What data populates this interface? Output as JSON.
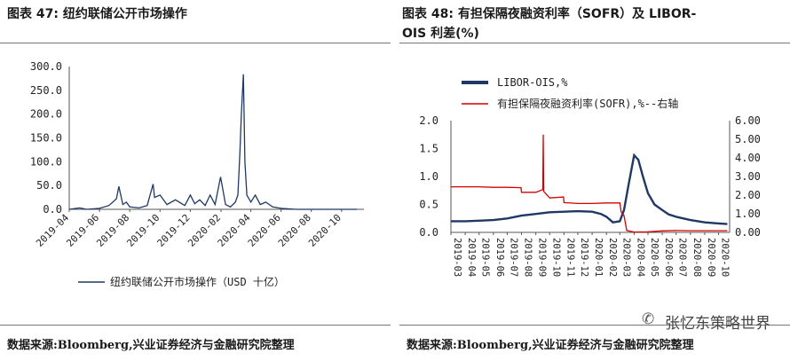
{
  "left": {
    "header": "图表 47:  纽约联储公开市场操作",
    "source": "数据来源:Bloomberg,兴业证券经济与金融研究院整理",
    "chart_data": {
      "type": "line",
      "series": [
        {
          "name": "纽约联储公开市场操作（USD 十亿）",
          "color": "#1f3864",
          "x": [
            "2019-04-01",
            "2019-04-22",
            "2019-05-06",
            "2019-06-01",
            "2019-06-20",
            "2019-07-05",
            "2019-07-10",
            "2019-07-18",
            "2019-07-25",
            "2019-08-01",
            "2019-08-20",
            "2019-09-05",
            "2019-09-17",
            "2019-09-20",
            "2019-10-01",
            "2019-10-15",
            "2019-11-01",
            "2019-11-20",
            "2019-12-01",
            "2019-12-10",
            "2019-12-20",
            "2019-12-31",
            "2020-01-10",
            "2020-01-20",
            "2020-01-31",
            "2020-02-10",
            "2020-02-20",
            "2020-03-01",
            "2020-03-06",
            "2020-03-10",
            "2020-03-13",
            "2020-03-17",
            "2020-03-20",
            "2020-03-24",
            "2020-04-01",
            "2020-04-10",
            "2020-04-20",
            "2020-05-01",
            "2020-05-15",
            "2020-06-01",
            "2020-07-01",
            "2020-08-01",
            "2020-09-01",
            "2020-10-01",
            "2020-11-01"
          ],
          "values": [
            0,
            3,
            0,
            2,
            8,
            22,
            48,
            10,
            15,
            5,
            3,
            8,
            53,
            25,
            30,
            10,
            20,
            8,
            30,
            12,
            20,
            8,
            30,
            10,
            68,
            10,
            5,
            15,
            30,
            120,
            200,
            284,
            100,
            30,
            15,
            30,
            10,
            15,
            5,
            2,
            0,
            0,
            0,
            0,
            0
          ]
        }
      ],
      "x_ticks": [
        "2019-04",
        "2019-06",
        "2019-08",
        "2019-10",
        "2019-12",
        "2020-02",
        "2020-04",
        "2020-06",
        "2020-08",
        "2020-10"
      ],
      "y_ticks": [
        "300.0",
        "250.0",
        "200.0",
        "150.0",
        "100.0",
        "50.0",
        "0.0"
      ],
      "ylim": [
        0,
        300
      ],
      "legend": "纽约联储公开市场操作（USD 十亿）",
      "legend_position": "bottom"
    }
  },
  "right": {
    "header_line1": "图表 48:  有担保隔夜融资利率（SOFR）及 LIBOR-",
    "header_line2": "OIS 利差(%)",
    "source": "数据来源:Bloomberg,兴业证券经济与金融研究院整理",
    "chart_data": {
      "type": "line",
      "series": [
        {
          "name": "LIBOR-OIS,%",
          "axis": "left",
          "color": "#1f3864",
          "x": [
            "2019-03-01",
            "2019-04-01",
            "2019-05-01",
            "2019-06-01",
            "2019-07-01",
            "2019-08-01",
            "2019-09-01",
            "2019-10-01",
            "2019-11-01",
            "2019-12-01",
            "2020-01-01",
            "2020-01-20",
            "2020-02-01",
            "2020-02-15",
            "2020-03-01",
            "2020-03-10",
            "2020-03-20",
            "2020-04-01",
            "2020-04-10",
            "2020-04-20",
            "2020-05-01",
            "2020-05-15",
            "2020-06-01",
            "2020-06-15",
            "2020-07-01",
            "2020-08-01",
            "2020-09-01",
            "2020-10-01",
            "2020-10-20"
          ],
          "values": [
            0.2,
            0.2,
            0.21,
            0.22,
            0.25,
            0.3,
            0.33,
            0.36,
            0.37,
            0.38,
            0.37,
            0.33,
            0.28,
            0.18,
            0.2,
            0.4,
            0.85,
            1.38,
            1.3,
            1.0,
            0.7,
            0.5,
            0.4,
            0.32,
            0.28,
            0.22,
            0.18,
            0.16,
            0.15
          ]
        },
        {
          "name": "有担保隔夜融资利率(SOFR),%--右轴",
          "axis": "right",
          "color": "#d40000",
          "x": [
            "2019-03-01",
            "2019-04-01",
            "2019-05-01",
            "2019-06-01",
            "2019-07-01",
            "2019-07-31",
            "2019-08-01",
            "2019-09-01",
            "2019-09-16",
            "2019-09-17",
            "2019-09-18",
            "2019-10-01",
            "2019-10-31",
            "2019-11-01",
            "2019-12-01",
            "2019-12-31",
            "2020-01-01",
            "2020-02-01",
            "2020-03-01",
            "2020-03-04",
            "2020-03-10",
            "2020-03-16",
            "2020-04-01",
            "2020-05-01",
            "2020-06-01",
            "2020-07-01",
            "2020-08-01",
            "2020-09-01",
            "2020-10-01",
            "2020-10-20"
          ],
          "values": [
            2.45,
            2.45,
            2.45,
            2.42,
            2.42,
            2.4,
            2.15,
            2.15,
            2.3,
            5.25,
            2.2,
            1.85,
            1.9,
            1.6,
            1.55,
            1.55,
            1.55,
            1.58,
            1.58,
            1.1,
            0.9,
            0.1,
            0.02,
            0.03,
            0.08,
            0.1,
            0.09,
            0.09,
            0.09,
            0.09
          ]
        }
      ],
      "x_ticks": [
        "2019-03",
        "2019-04",
        "2019-05",
        "2019-06",
        "2019-07",
        "2019-08",
        "2019-09",
        "2019-10",
        "2019-11",
        "2019-12",
        "2020-01",
        "2020-02",
        "2020-03",
        "2020-04",
        "2020-05",
        "2020-06",
        "2020-07",
        "2020-08",
        "2020-09",
        "2020-10"
      ],
      "y_left_ticks": [
        "2.0",
        "1.5",
        "1.0",
        "0.5",
        "0.0"
      ],
      "y_right_ticks": [
        "6.00",
        "5.00",
        "4.00",
        "3.00",
        "2.00",
        "1.00",
        "0.00"
      ],
      "ylim_left": [
        0,
        2
      ],
      "ylim_right": [
        0,
        6
      ],
      "legend_position": "top"
    }
  },
  "watermark": "张忆东策略世界",
  "watermark_icon": "wechat-icon"
}
